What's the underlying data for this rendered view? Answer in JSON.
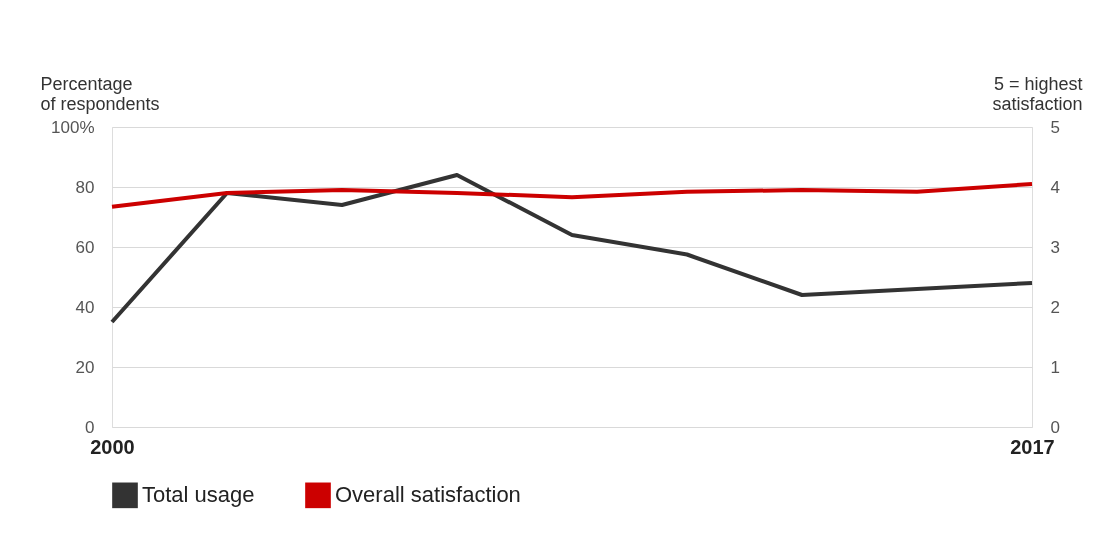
{
  "chart_data": {
    "type": "line",
    "ylabel": "Percentage\nof respondents",
    "y2label": "5 = highest\nsatisfaction",
    "categories": [
      "2000",
      null,
      null,
      null,
      null,
      null,
      null,
      null,
      "2017"
    ],
    "series": [
      {
        "name": "Total usage",
        "color": "#333333",
        "values": [
          35,
          78,
          74,
          84,
          64,
          57.5,
          44,
          46,
          48
        ]
      },
      {
        "name": "Overall satisfaction",
        "color": "#cc0000",
        "axis": "y2",
        "values": [
          3.67,
          3.9,
          3.95,
          3.9,
          3.83,
          3.92,
          3.95,
          3.92,
          4.05
        ]
      }
    ],
    "ylim": [
      0,
      100
    ],
    "yticks": [
      0,
      20,
      40,
      60,
      {
        "value": 80,
        "label": "80"
      },
      {
        "value": 100,
        "label": "100%"
      }
    ],
    "y2lim": [
      0,
      5
    ],
    "y2ticks": [
      0,
      1,
      2,
      3,
      4,
      5
    ],
    "grid": "y",
    "legend": "bottom",
    "marker": "none",
    "line_style": "solid"
  }
}
